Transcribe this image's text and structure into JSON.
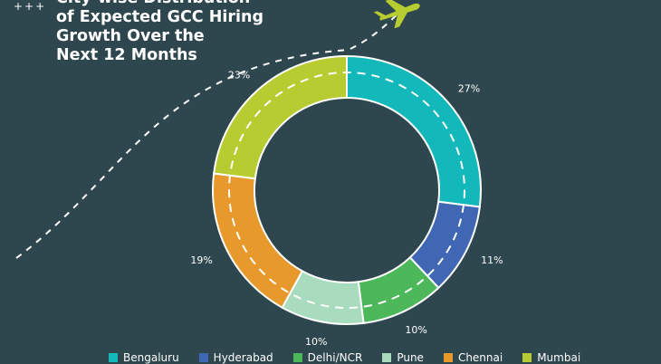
{
  "header": {
    "plus_marks": "+++",
    "title_lines": [
      "City-wise Distribution",
      "of Expected GCC Hiring",
      "Growth Over the",
      "Next 12 Months"
    ]
  },
  "decoration": {
    "plane_icon": "airplane-icon"
  },
  "chart_data": {
    "type": "pie",
    "categories": [
      "Bengaluru",
      "Hyderabad",
      "Delhi/NCR",
      "Pune",
      "Chennai",
      "Mumbai"
    ],
    "values": [
      27,
      11,
      10,
      10,
      19,
      23
    ],
    "value_labels": [
      "27%",
      "11%",
      "10%",
      "10%",
      "19%",
      "23%"
    ],
    "colors": [
      "#12b8ba",
      "#3f67b3",
      "#4cb85a",
      "#a9dbbe",
      "#e79a2b",
      "#b6cc30"
    ],
    "legend_position": "bottom",
    "style": "donut"
  }
}
